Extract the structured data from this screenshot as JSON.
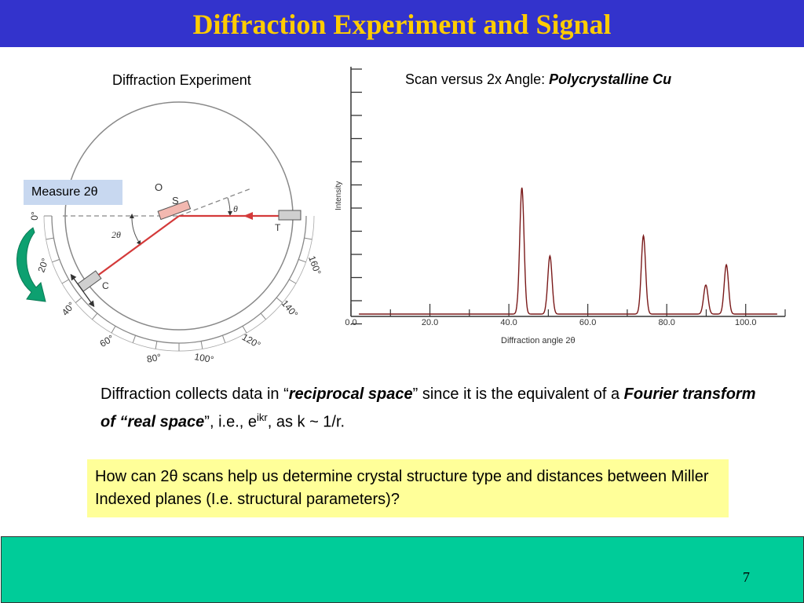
{
  "slide": {
    "title": "Diffraction Experiment and Signal",
    "left_label": "Diffraction Experiment",
    "right_label_prefix": "Scan versus 2x Angle: ",
    "right_label_em": "Polycrystalline Cu",
    "measure_label": "Measure 2θ",
    "page_number": "7"
  },
  "diagram": {
    "angle_labels": [
      "0°",
      "20°",
      "40°",
      "60°",
      "80°",
      "100°",
      "120°",
      "140°",
      "160°"
    ],
    "labels": {
      "o": "O",
      "s": "S",
      "t": "T",
      "c": "C",
      "theta": "θ",
      "two_theta": "2θ"
    },
    "colors": {
      "beam": "#d43a3a",
      "sample": "#f2b8b0",
      "arrow": "#0da070"
    }
  },
  "chart_data": {
    "type": "line",
    "title": "",
    "xlabel": "Diffraction angle 2θ",
    "ylabel": "Intensity",
    "xlim": [
      0,
      110
    ],
    "x_ticks": [
      "0.0",
      "20.0",
      "40.0",
      "60.0",
      "80.0",
      "100.0"
    ],
    "series": [
      {
        "peaks_2theta": [
          43.3,
          50.4,
          74.1,
          89.9,
          95.1
        ],
        "peak_intensity": [
          1.0,
          0.46,
          0.62,
          0.23,
          0.39
        ]
      }
    ]
  },
  "body": {
    "p1": "Diffraction collects data in “",
    "p1_em": "reciprocal space",
    "p2": "” since it is the equivalent of a ",
    "p2_em": "Fourier transform of “real space",
    "p3": "”, i.e., e",
    "p3_sup": "ikr",
    "p4": ", as k ~ 1/r.",
    "question": "How can 2θ  scans help us determine crystal structure type and distances between Miller Indexed planes (I.e. structural parameters)?"
  }
}
